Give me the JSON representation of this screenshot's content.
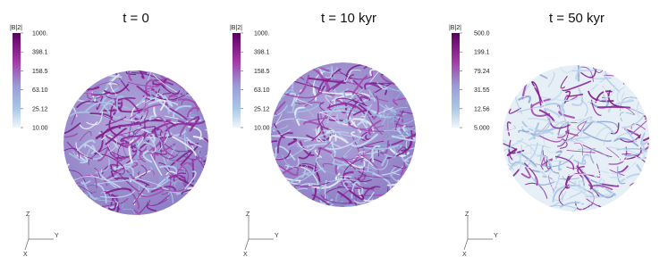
{
  "panels": [
    {
      "title": "t = 0",
      "colorbar": {
        "label": "|B|2|",
        "ticks": [
          "1000.",
          "398.1",
          "158.5",
          "63.10",
          "25.12",
          "10.00"
        ]
      },
      "axes": {
        "z": "Z",
        "y": "Y",
        "x": "X"
      }
    },
    {
      "title": "t = 10 kyr",
      "colorbar": {
        "label": "|B|2|",
        "ticks": [
          "1000.",
          "398.1",
          "158.5",
          "63.10",
          "25.12",
          "10.00"
        ]
      },
      "axes": {
        "z": "Z",
        "y": "Y",
        "x": "X"
      }
    },
    {
      "title": "t = 50 kyr",
      "colorbar": {
        "label": "|B|2|",
        "ticks": [
          "500.0",
          "199.1",
          "79.24",
          "31.55",
          "12.56",
          "5.000"
        ]
      },
      "axes": {
        "z": "Z",
        "y": "Y",
        "x": "X"
      }
    }
  ]
}
